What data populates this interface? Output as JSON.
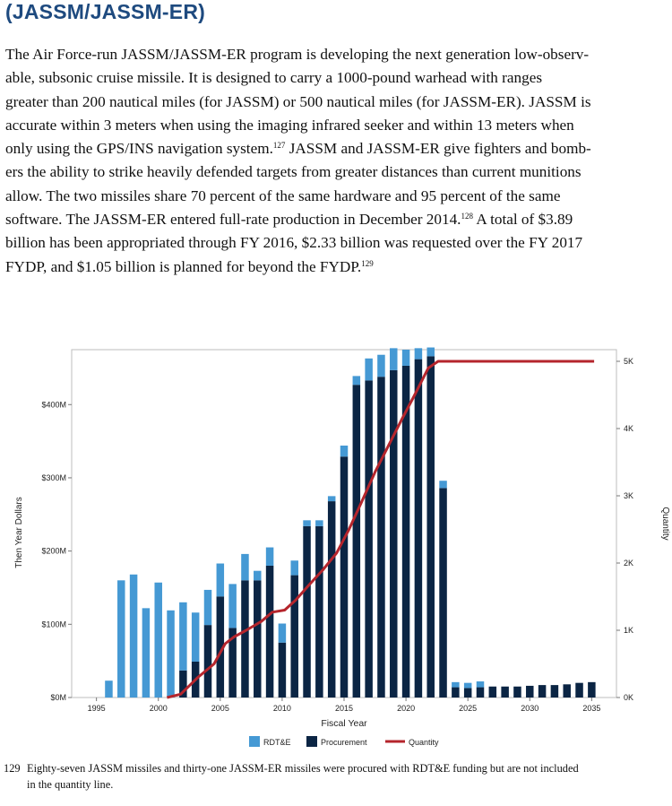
{
  "heading": "(JASSM/JASSM-ER)",
  "paragraph": [
    {
      "text": "The Air Force-run JASSM/JASSM-ER program is developing the next generation low-observ-"
    },
    {
      "text": "able, subsonic cruise missile. It is designed to carry a 1000-pound warhead with ranges"
    },
    {
      "text": "greater than 200 nautical miles (for JASSM) or 500 nautical miles (for JASSM-ER). JASSM is"
    },
    {
      "text": "accurate within 3 meters when using the imaging infrared seeker and within 13 meters when"
    },
    {
      "text": "only using the GPS/INS navigation system.",
      "sup": "127",
      "after": " JASSM and JASSM-ER give fighters and bomb-"
    },
    {
      "text": "ers the ability to strike heavily defended targets from greater distances than current munitions"
    },
    {
      "text": "allow. The two missiles share 70 percent of the same hardware and 95 percent of the same"
    },
    {
      "text": "software. The JASSM-ER entered full-rate production in December 2014.",
      "sup": "128",
      "after": " A total of $3.89"
    },
    {
      "text": "billion has been appropriated through FY 2016, $2.33 billion was requested over the FY 2017"
    },
    {
      "text": "FYDP, and $1.05 billion is planned for beyond the FYDP.",
      "sup": "129",
      "after": ""
    }
  ],
  "chart_data": {
    "type": "bar",
    "xlabel": "Fiscal Year",
    "ylabel": "Then Year Dollars",
    "ylabel_right": "Quantity",
    "ylim": [
      0,
      475
    ],
    "ylim_right": [
      0,
      5000
    ],
    "yticks": [
      {
        "value": 0,
        "label": "$0M"
      },
      {
        "value": 100,
        "label": "$100M"
      },
      {
        "value": 200,
        "label": "$200M"
      },
      {
        "value": 300,
        "label": "$300M"
      },
      {
        "value": 400,
        "label": "$400M"
      }
    ],
    "yticks_right": [
      {
        "value": 0,
        "label": "0K"
      },
      {
        "value": 1000,
        "label": "1K"
      },
      {
        "value": 2000,
        "label": "2K"
      },
      {
        "value": 3000,
        "label": "3K"
      },
      {
        "value": 4000,
        "label": "4K"
      },
      {
        "value": 5000,
        "label": "5K"
      }
    ],
    "xticks": [
      1995,
      2000,
      2005,
      2010,
      2015,
      2020,
      2025,
      2030,
      2035
    ],
    "xlim": [
      1993,
      2037
    ],
    "categories": [
      1996,
      1997,
      1998,
      1999,
      2000,
      2001,
      2002,
      2003,
      2004,
      2005,
      2006,
      2007,
      2008,
      2009,
      2010,
      2011,
      2012,
      2013,
      2014,
      2015,
      2016,
      2017,
      2018,
      2019,
      2020,
      2021,
      2022,
      2023,
      2024,
      2025,
      2026,
      2027,
      2028,
      2029,
      2030,
      2031,
      2032,
      2033,
      2034,
      2035
    ],
    "series": [
      {
        "name": "RDT&E",
        "color": "#4599d4",
        "values": [
          23,
          160,
          168,
          122,
          157,
          119,
          93,
          67,
          48,
          45,
          60,
          36,
          13,
          25,
          26,
          20,
          8,
          8,
          7,
          15,
          12,
          30,
          30,
          30,
          22,
          15,
          12,
          10,
          7,
          7,
          8,
          0,
          0,
          0,
          0,
          0,
          0,
          0,
          0,
          0
        ]
      },
      {
        "name": "Procurement",
        "color": "#0b2544",
        "values": [
          0,
          0,
          0,
          0,
          0,
          0,
          37,
          49,
          99,
          138,
          95,
          160,
          160,
          180,
          75,
          167,
          234,
          234,
          268,
          329,
          427,
          433,
          438,
          447,
          453,
          462,
          466,
          286,
          14,
          13,
          14,
          15,
          15,
          15,
          16,
          17,
          17,
          18,
          20,
          21
        ]
      }
    ],
    "line": {
      "name": "Quantity",
      "color": "#b5252c",
      "x": [
        2000.7,
        2001.8,
        2003.2,
        2004.5,
        2005.4,
        2006.1,
        2007.1,
        2008.3,
        2009.2,
        2010.2,
        2011.1,
        2012.2,
        2013.3,
        2014.4,
        2015.4,
        2016.4,
        2017.5,
        2018.6,
        2019.7,
        2020.7,
        2021.8,
        2022.6,
        2023.2,
        2024,
        2035.2
      ],
      "y": [
        0,
        50,
        300,
        500,
        800,
        900,
        1000,
        1130,
        1270,
        1300,
        1450,
        1680,
        1900,
        2150,
        2500,
        2900,
        3350,
        3750,
        4150,
        4500,
        4900,
        5000,
        5000,
        5000,
        5000
      ]
    }
  },
  "footnote": {
    "number": "129",
    "line1": "Eighty-seven JASSM missiles and thirty-one JASSM-ER missiles were procured with RDT&E funding but are not included",
    "line2": "in the quantity line."
  }
}
